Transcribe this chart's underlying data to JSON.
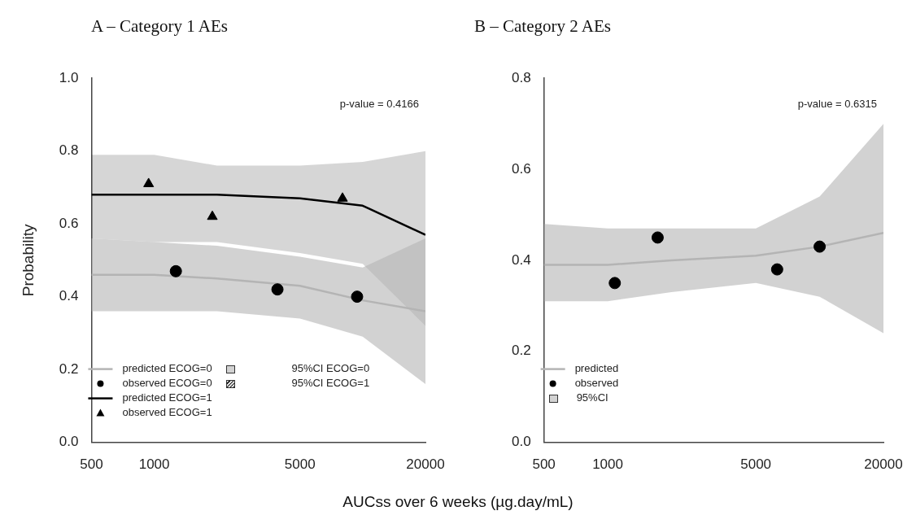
{
  "chart_data": [
    {
      "type": "line",
      "title": "A – Category 1 AEs",
      "xlabel": "AUCss over 6 weeks (µg.day/mL)",
      "ylabel": "Probability",
      "log": "x",
      "xlim": [
        500,
        20000
      ],
      "xticks": [
        500,
        1000,
        5000,
        20000
      ],
      "ylim": [
        0,
        1
      ],
      "yticks": [
        {
          "value": 0,
          "label": "0.0"
        },
        {
          "value": 0.2,
          "label": "0.2"
        },
        {
          "value": 0.4,
          "label": "0.4"
        },
        {
          "value": 0.6,
          "label": "0.6"
        },
        {
          "value": 0.8,
          "label": "0.8"
        },
        {
          "value": 1,
          "label": "1.0"
        }
      ],
      "grid": false,
      "legend": "bottom left",
      "annotations": [
        "p-value = 0.4166",
        "95%CI ECOG=0",
        "95%CI ECOG=1"
      ],
      "series": [
        {
          "name": "predicted ECOG=0",
          "type": "line",
          "color": "#b4b4b4",
          "x": [
            500,
            1000,
            2000,
            5000,
            10000,
            20000
          ],
          "values": [
            0.46,
            0.46,
            0.45,
            0.43,
            0.39,
            0.36
          ],
          "lower": [
            0.36,
            0.36,
            0.36,
            0.34,
            0.29,
            0.16
          ],
          "upper": [
            0.56,
            0.55,
            0.54,
            0.51,
            0.48,
            0.56
          ]
        },
        {
          "name": "observed ECOG=0",
          "type": "scatter",
          "marker": "circle",
          "color": "#000000",
          "x": [
            1270,
            3900,
            9400
          ],
          "values": [
            0.47,
            0.42,
            0.4
          ]
        },
        {
          "name": "predicted ECOG=1",
          "type": "line",
          "color": "#000000",
          "x": [
            500,
            1000,
            2000,
            5000,
            10000,
            20000
          ],
          "values": [
            0.68,
            0.68,
            0.68,
            0.67,
            0.65,
            0.57
          ],
          "lower": [
            0.56,
            0.55,
            0.55,
            0.52,
            0.49,
            0.32
          ],
          "upper": [
            0.79,
            0.79,
            0.76,
            0.76,
            0.77,
            0.8
          ]
        },
        {
          "name": "observed ECOG=1",
          "type": "scatter",
          "marker": "triangle",
          "color": "#000000",
          "x": [
            940,
            1900,
            8000
          ],
          "values": [
            0.71,
            0.62,
            0.67
          ]
        }
      ]
    },
    {
      "type": "line",
      "title": "B – Category 2 AEs",
      "log": "x",
      "xlim": [
        500,
        20000
      ],
      "xticks": [
        500,
        1000,
        5000,
        20000
      ],
      "ylim": [
        0,
        0.8
      ],
      "yticks": [
        {
          "value": 0,
          "label": "0.0"
        },
        {
          "value": 0.2,
          "label": "0.2"
        },
        {
          "value": 0.4,
          "label": "0.4"
        },
        {
          "value": 0.6,
          "label": "0.6"
        },
        {
          "value": 0.8,
          "label": "0.8"
        }
      ],
      "grid": false,
      "legend": "bottom left",
      "annotations": [
        "p-value = 0.6315",
        "95%CI"
      ],
      "series": [
        {
          "name": "predicted",
          "type": "line",
          "color": "#b4b4b4",
          "x": [
            500,
            1000,
            2000,
            5000,
            10000,
            20000
          ],
          "values": [
            0.39,
            0.39,
            0.4,
            0.41,
            0.43,
            0.46
          ],
          "lower": [
            0.31,
            0.31,
            0.33,
            0.35,
            0.32,
            0.24
          ],
          "upper": [
            0.48,
            0.47,
            0.47,
            0.47,
            0.54,
            0.7
          ]
        },
        {
          "name": "observed",
          "type": "scatter",
          "marker": "circle",
          "color": "#000000",
          "x": [
            1080,
            1720,
            6300,
            10000
          ],
          "values": [
            0.35,
            0.45,
            0.38,
            0.43
          ]
        }
      ]
    }
  ]
}
